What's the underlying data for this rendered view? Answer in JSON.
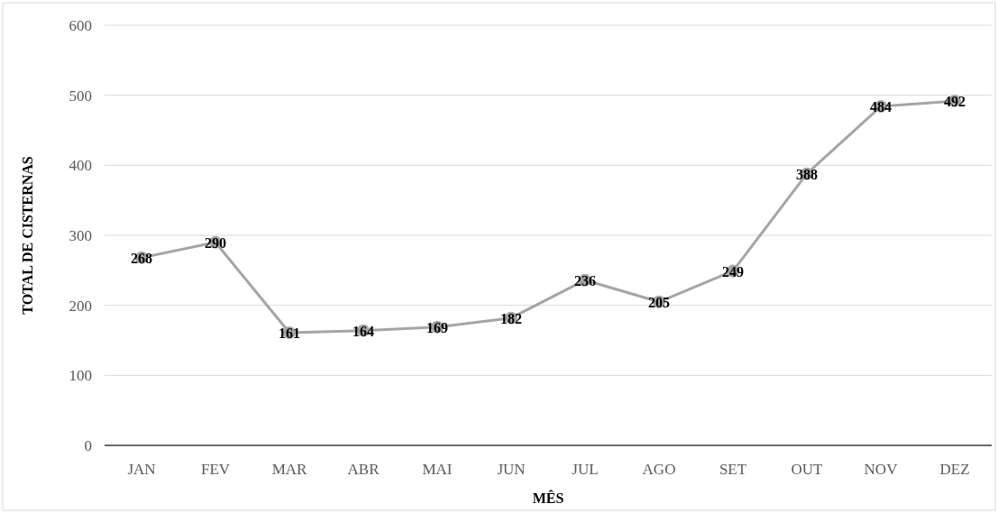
{
  "chart_data": {
    "type": "line",
    "xlabel": "MÊS",
    "ylabel": "TOTAL DE CISTERNAS",
    "categories": [
      "JAN",
      "FEV",
      "MAR",
      "ABR",
      "MAI",
      "JUN",
      "JUL",
      "AGO",
      "SET",
      "OUT",
      "NOV",
      "DEZ"
    ],
    "series": [
      {
        "color": "#a5a5a5",
        "values": [
          268,
          290,
          161,
          164,
          169,
          182,
          236,
          205,
          249,
          388,
          484,
          492
        ]
      }
    ],
    "ylim": [
      0,
      600
    ],
    "yticks": [
      0,
      100,
      200,
      300,
      400,
      500,
      600
    ],
    "grid": "y",
    "marker": "circle",
    "data_labels": true
  }
}
